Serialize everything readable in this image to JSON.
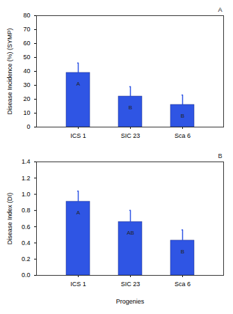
{
  "chart_data": [
    {
      "type": "bar",
      "title": "A",
      "y_label": "Disease Incidence (%) (SYMP)",
      "categories": [
        "ICS 1",
        "SIC 23",
        "Sca 6"
      ],
      "values": [
        39,
        22,
        16
      ],
      "errors": [
        7,
        7,
        7
      ],
      "bar_labels": [
        "A",
        "B",
        "B"
      ],
      "color": "#2f55e4",
      "ylim": [
        0,
        80
      ],
      "yticks": [
        0,
        10,
        20,
        30,
        40,
        50,
        60,
        70,
        80
      ],
      "grid": false
    },
    {
      "type": "bar",
      "title": "B",
      "y_label": "Disease Index (DI)",
      "x_label": "Progenies",
      "categories": [
        "ICS 1",
        "SIC 23",
        "Sca 6"
      ],
      "values": [
        0.91,
        0.66,
        0.43
      ],
      "errors": [
        0.13,
        0.14,
        0.13
      ],
      "bar_labels": [
        "A",
        "AB",
        "B"
      ],
      "color": "#2f55e4",
      "ylim": [
        0,
        1.4
      ],
      "yticks": [
        {
          "value": 0,
          "label": "0.0"
        },
        0.2,
        0.4,
        0.6,
        0.8,
        {
          "value": 1,
          "label": "1.0"
        },
        1.2,
        1.4
      ],
      "grid": false
    }
  ]
}
